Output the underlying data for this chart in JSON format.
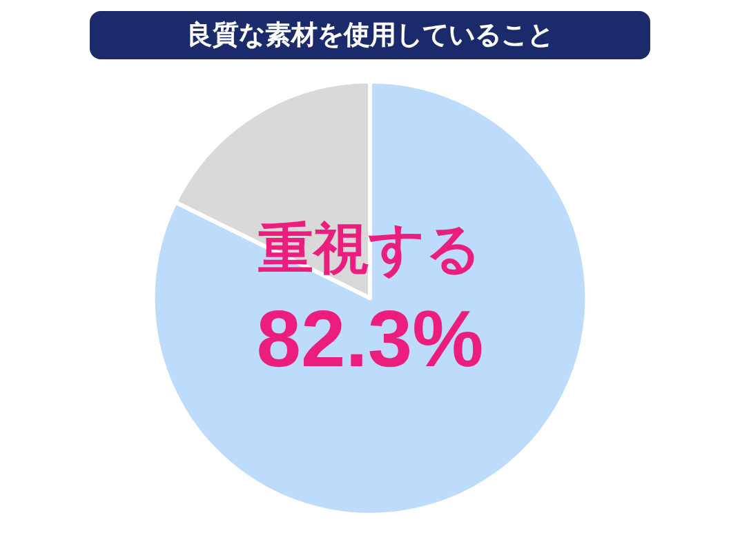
{
  "chart_data": {
    "type": "pie",
    "title": "良質な素材を使用していること",
    "categories": [
      "重視する",
      null
    ],
    "values": [
      82.3,
      17.7
    ],
    "colors": [
      "#bddcfb",
      "#d9d9d9"
    ],
    "value_labels": [
      "82.3%",
      null
    ],
    "legend": false
  }
}
